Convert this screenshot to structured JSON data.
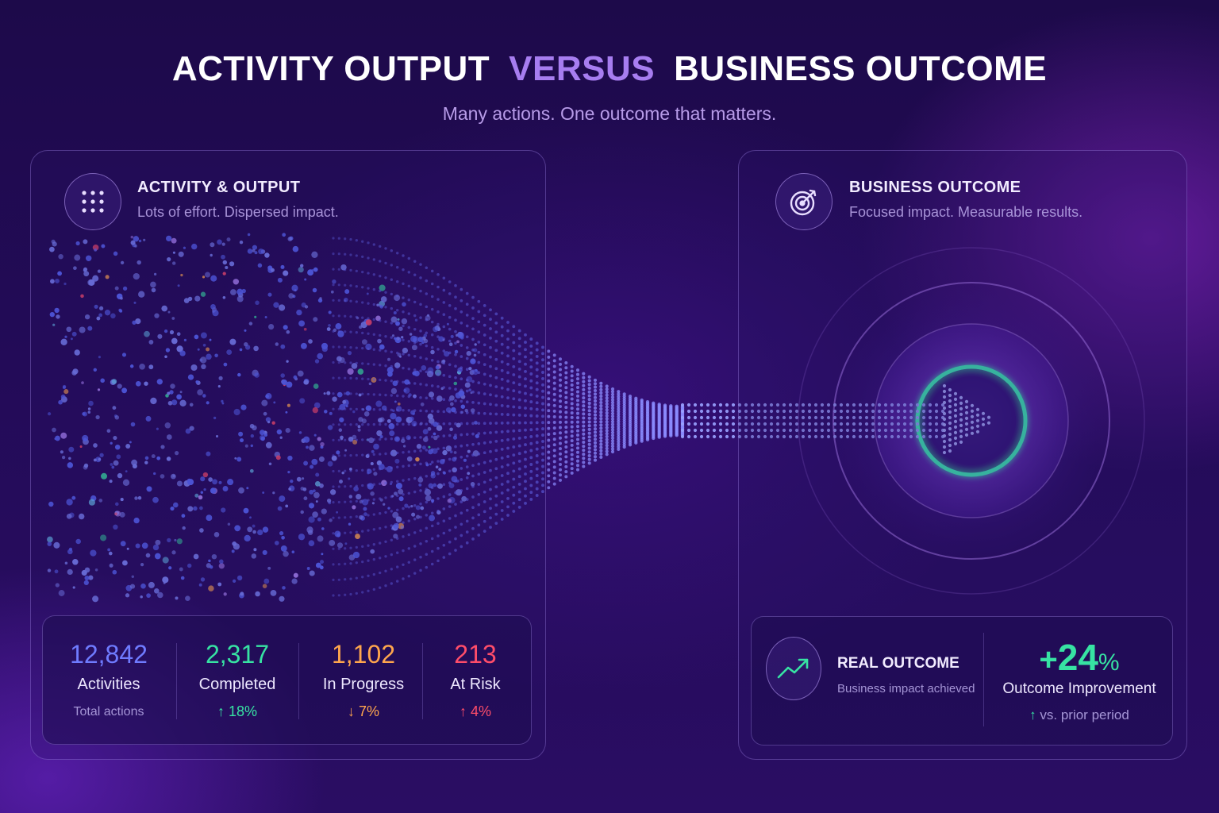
{
  "header": {
    "title_part1": "ACTIVITY OUTPUT",
    "title_accent": "VERSUS",
    "title_part2": "BUSINESS OUTCOME",
    "subtitle": "Many actions. One outcome that matters."
  },
  "left_panel": {
    "icon": "grid-dots-icon",
    "title": "ACTIVITY & OUTPUT",
    "subtitle": "Lots of effort. Dispersed impact.",
    "stats": [
      {
        "value": "12,842",
        "label": "Activities",
        "caption": "Total actions",
        "color": "#6f7bff"
      },
      {
        "value": "2,317",
        "label": "Completed",
        "change": "18%",
        "direction": "up",
        "color": "#37e3a3"
      },
      {
        "value": "1,102",
        "label": "In Progress",
        "change": "7%",
        "direction": "down",
        "color": "#ffa64d"
      },
      {
        "value": "213",
        "label": "At Risk",
        "change": "4%",
        "direction": "up",
        "color": "#ff4d6a"
      }
    ]
  },
  "right_panel": {
    "icon": "target-arrow-icon",
    "title": "BUSINESS OUTCOME",
    "subtitle": "Focused impact. Measurable results.",
    "outcome": {
      "icon": "trend-up-icon",
      "title": "REAL OUTCOME",
      "subtitle": "Business impact achieved",
      "sign": "+",
      "value": "24",
      "unit": "%",
      "label": "Outcome Improvement",
      "comparison": "vs. prior period",
      "color": "#37e3a3"
    }
  },
  "colors": {
    "accent": "#a77df0",
    "dots_primary": "#5a6cff",
    "ring": "#3cf0b4"
  }
}
